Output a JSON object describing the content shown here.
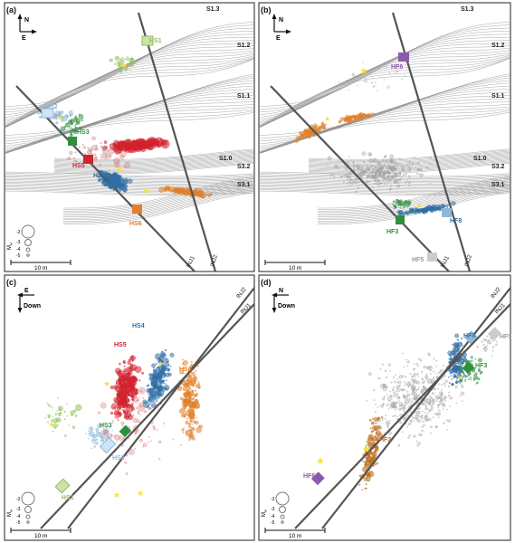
{
  "colors": {
    "hs1": "#8fbf5a",
    "hs2": "#8fb8d8",
    "hs3": "#2f8f3c",
    "hs4": "#2f6fa6",
    "hs5": "#d2222d",
    "hs6": "#e0802b",
    "hf6": "#8a5aa8",
    "hf8": "#2f6fa6",
    "hf3": "#2f8f3c",
    "hf5": "#9a9a9a",
    "hf2": "#c07020",
    "star": "#f6e23a",
    "grey_event": "#9a9a9a"
  },
  "compass": {
    "north": "N",
    "east": "E",
    "down": "Down"
  },
  "panels": [
    {
      "label": "(a)",
      "stages": [
        "HS1",
        "HS2",
        "HS3",
        "HS4",
        "HS5",
        "HS6"
      ],
      "structures": [
        "S1.3",
        "S1.2",
        "S1.1",
        "S1.0",
        "S3.2",
        "S3.1"
      ],
      "wells": [
        "INJ1",
        "INJ2"
      ],
      "scale_bar": "10 m",
      "magnitude_axis": "M",
      "magnitude_subscript": "w",
      "magnitude_ticks": [
        "-2",
        "-3",
        "-4",
        "-5"
      ]
    },
    {
      "label": "(b)",
      "stages": [
        "HF6",
        "HF3",
        "HF8",
        "HF5"
      ],
      "structures": [
        "S1.3",
        "S1.2",
        "S1.1",
        "S1.0",
        "S3.2",
        "S3.1"
      ],
      "wells": [
        "INJ1",
        "INJ2"
      ],
      "scale_bar": "10 m"
    },
    {
      "label": "(c)",
      "stages": [
        "HS4",
        "HS5",
        "HS6",
        "HS3",
        "HS2",
        "HS1"
      ],
      "wells": [
        "INJ2",
        "INJ1"
      ],
      "scale_bar": "10 m",
      "magnitude_axis": "M",
      "magnitude_subscript": "w",
      "magnitude_ticks": [
        "-2",
        "-3",
        "-4",
        "-5"
      ]
    },
    {
      "label": "(d)",
      "stages": [
        "HF8",
        "HF5",
        "HF3",
        "HF2",
        "HF6"
      ],
      "wells": [
        "INJ2",
        "INJ1"
      ],
      "scale_bar": "10 m",
      "magnitude_axis": "M",
      "magnitude_subscript": "w",
      "magnitude_ticks": [
        "-2",
        "-3",
        "-4",
        "-5"
      ]
    }
  ]
}
